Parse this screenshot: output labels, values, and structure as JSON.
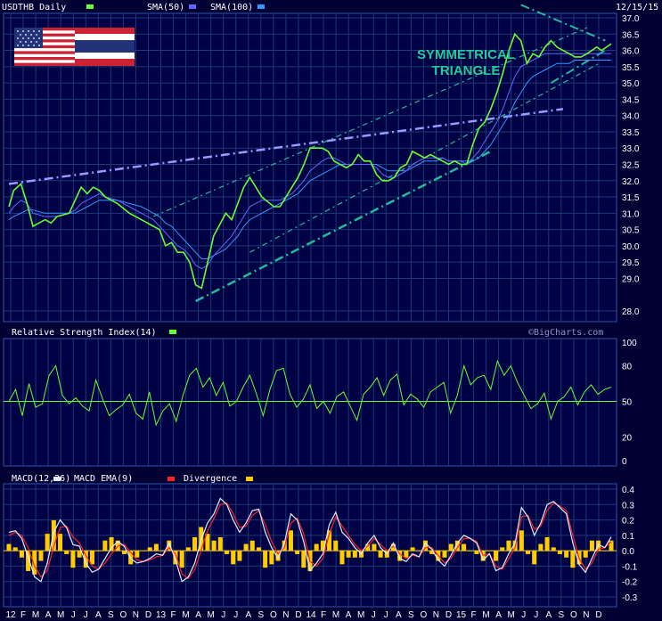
{
  "header": {
    "symbol_label": "USDTHB Daily",
    "sma50_label": "SMA(50)",
    "sma100_label": "SMA(100)",
    "date_label": "12/15/15",
    "annotation_line1": "SYMMETRICAL",
    "annotation_line2": "TRIANGLE",
    "watermark": "©BigCharts.com"
  },
  "colors": {
    "background": "#000033",
    "price": "#66ff33",
    "sma50": "#6666ff",
    "sma100": "#3399ff",
    "grid": "#1a3a7a",
    "channel": "#22bb99",
    "resistance": "#9999ff",
    "rsi": "#66ff33",
    "macd": "#ddeeff",
    "macd_ema": "#ff2222",
    "divergence": "#ffcc00"
  },
  "flag_icons": [
    "us-flag-icon",
    "thailand-flag-icon"
  ],
  "chart_data": [
    {
      "type": "line",
      "title": "USDTHB Daily",
      "series_names": [
        "USDTHB",
        "SMA(50)",
        "SMA(100)"
      ],
      "ylim": [
        28.0,
        37.0
      ],
      "yticks": [
        "28.0",
        "29.0",
        "29.5",
        "30.0",
        "30.5",
        "31.0",
        "31.5",
        "32.0",
        "32.5",
        "33.0",
        "33.5",
        "34.0",
        "34.5",
        "35.0",
        "35.5",
        "36.0",
        "36.5",
        "37.0"
      ],
      "x": [
        0,
        0.4,
        1,
        1.5,
        2,
        3,
        3.5,
        4,
        5,
        5.5,
        6,
        6.5,
        7,
        7.5,
        8,
        9,
        10,
        11,
        12,
        12.5,
        13,
        13.5,
        14,
        14.5,
        15,
        15.5,
        16,
        16.5,
        17,
        18,
        18.5,
        19,
        19.5,
        20,
        21,
        22,
        22.5,
        23,
        23.5,
        24,
        24.5,
        25,
        26,
        26.5,
        27,
        27.5,
        28,
        28.5,
        29,
        29.5,
        30,
        30.5,
        31,
        31.5,
        32,
        32.5,
        33,
        33.5,
        34,
        34.5,
        35,
        35.5,
        36,
        36.5,
        37,
        37.5,
        38,
        38.5,
        39,
        39.5,
        40,
        40.5,
        41,
        41.5,
        42,
        42.5,
        43,
        43.5,
        44,
        44.5,
        45,
        45.5,
        46,
        46.5,
        47,
        47.5,
        48,
        48.4,
        48.8,
        49.2,
        49.6,
        50
      ],
      "price": [
        31.2,
        31.7,
        31.9,
        31.3,
        30.6,
        30.8,
        30.7,
        30.9,
        31.0,
        31.4,
        31.8,
        31.6,
        31.8,
        31.7,
        31.5,
        31.3,
        31.0,
        30.8,
        30.6,
        30.5,
        30.0,
        30.1,
        29.8,
        29.8,
        29.5,
        28.8,
        28.7,
        29.5,
        30.3,
        31.0,
        30.8,
        31.3,
        31.8,
        32.1,
        31.5,
        31.2,
        31.2,
        31.5,
        31.8,
        32.1,
        32.5,
        33.0,
        33.0,
        32.9,
        32.6,
        32.5,
        32.4,
        32.5,
        32.8,
        32.6,
        32.6,
        32.2,
        32.0,
        32.0,
        32.1,
        32.4,
        32.5,
        32.9,
        32.8,
        32.7,
        32.8,
        32.7,
        32.6,
        32.5,
        32.6,
        32.5,
        32.5,
        33.1,
        33.6,
        33.8,
        34.2,
        34.7,
        35.3,
        36.0,
        36.5,
        36.3,
        35.6,
        35.9,
        35.8,
        36.1,
        36.3,
        36.1,
        36.0,
        35.9,
        35.8,
        35.8,
        35.9,
        36.0,
        36.1,
        36.0,
        36.1,
        36.2
      ],
      "sma50": [
        31.0,
        31.2,
        31.4,
        31.3,
        31.0,
        30.9,
        30.9,
        30.9,
        31.0,
        31.1,
        31.3,
        31.4,
        31.5,
        31.6,
        31.5,
        31.4,
        31.2,
        31.0,
        30.8,
        30.6,
        30.4,
        30.2,
        30.0,
        29.9,
        29.7,
        29.4,
        29.3,
        29.4,
        29.7,
        30.1,
        30.3,
        30.6,
        30.9,
        31.2,
        31.4,
        31.4,
        31.4,
        31.5,
        31.6,
        31.8,
        32.0,
        32.3,
        32.6,
        32.7,
        32.7,
        32.6,
        32.5,
        32.5,
        32.5,
        32.5,
        32.5,
        32.4,
        32.2,
        32.1,
        32.1,
        32.2,
        32.3,
        32.5,
        32.6,
        32.7,
        32.7,
        32.7,
        32.7,
        32.6,
        32.6,
        32.6,
        32.5,
        32.7,
        32.9,
        33.2,
        33.5,
        33.8,
        34.2,
        34.7,
        35.2,
        35.5,
        35.6,
        35.7,
        35.8,
        35.9,
        35.9,
        35.9,
        35.9,
        35.9,
        35.9,
        35.9,
        35.9,
        35.9,
        35.9,
        35.9,
        35.9,
        35.9
      ],
      "sma100": [
        30.8,
        30.9,
        31.0,
        31.1,
        31.1,
        31.0,
        31.0,
        31.0,
        31.0,
        31.0,
        31.1,
        31.2,
        31.3,
        31.4,
        31.4,
        31.4,
        31.3,
        31.2,
        31.0,
        30.9,
        30.7,
        30.6,
        30.4,
        30.2,
        30.0,
        29.8,
        29.6,
        29.6,
        29.7,
        29.9,
        30.1,
        30.3,
        30.6,
        30.8,
        31.0,
        31.2,
        31.3,
        31.4,
        31.5,
        31.6,
        31.8,
        32.0,
        32.2,
        32.3,
        32.4,
        32.5,
        32.5,
        32.5,
        32.5,
        32.5,
        32.5,
        32.5,
        32.4,
        32.3,
        32.3,
        32.3,
        32.3,
        32.4,
        32.5,
        32.6,
        32.6,
        32.6,
        32.7,
        32.6,
        32.6,
        32.6,
        32.6,
        32.6,
        32.7,
        32.9,
        33.1,
        33.4,
        33.7,
        34.0,
        34.4,
        34.7,
        35.0,
        35.2,
        35.3,
        35.4,
        35.5,
        35.6,
        35.6,
        35.6,
        35.7,
        35.7,
        35.7,
        35.7,
        35.7,
        35.7,
        35.7,
        35.7
      ]
    },
    {
      "type": "line",
      "title": "Relative Strength Index(14)",
      "ylim": [
        0,
        100
      ],
      "yticks": [
        "0",
        "20",
        "50",
        "80",
        "100"
      ],
      "reference_line": 50,
      "values": [
        50,
        60,
        38,
        65,
        45,
        48,
        72,
        80,
        55,
        48,
        53,
        46,
        42,
        68,
        52,
        38,
        43,
        47,
        56,
        40,
        35,
        58,
        30,
        42,
        48,
        33,
        55,
        72,
        78,
        62,
        70,
        55,
        66,
        46,
        50,
        62,
        72,
        56,
        38,
        60,
        76,
        78,
        56,
        45,
        52,
        64,
        44,
        50,
        40,
        54,
        58,
        46,
        34,
        56,
        62,
        70,
        55,
        68,
        73,
        47,
        56,
        52,
        45,
        58,
        62,
        66,
        40,
        55,
        80,
        64,
        70,
        72,
        60,
        84,
        72,
        80,
        66,
        55,
        44,
        48,
        57,
        35,
        50,
        54,
        62,
        47,
        58,
        64,
        56,
        60,
        62
      ]
    },
    {
      "type": "line",
      "title": "MACD(12,26)",
      "series_names": [
        "MACD(12,26)",
        "MACD EMA(9)",
        "Divergence"
      ],
      "ylim": [
        -0.3,
        0.4
      ],
      "yticks": [
        "-0.3",
        "-0.2",
        "-0.1",
        "0.0",
        "0.1",
        "0.2",
        "0.3",
        "0.4"
      ],
      "macd": [
        0.12,
        0.13,
        0.08,
        -0.04,
        -0.17,
        -0.2,
        -0.08,
        0.12,
        0.2,
        0.15,
        0.04,
        0.03,
        -0.08,
        -0.14,
        -0.12,
        -0.05,
        0.02,
        0.06,
        0.03,
        -0.05,
        -0.08,
        -0.07,
        -0.05,
        -0.02,
        -0.03,
        0.05,
        -0.06,
        -0.2,
        -0.17,
        -0.08,
        0.07,
        0.18,
        0.24,
        0.34,
        0.3,
        0.2,
        0.12,
        0.18,
        0.26,
        0.27,
        0.12,
        0.02,
        -0.05,
        0.05,
        0.24,
        0.2,
        0.06,
        -0.13,
        -0.08,
        -0.02,
        0.17,
        0.25,
        0.12,
        0.08,
        0.02,
        -0.02,
        0.05,
        0.1,
        0.02,
        -0.02,
        0.05,
        -0.05,
        -0.07,
        -0.02,
        -0.04,
        0.05,
        0.01,
        -0.06,
        -0.1,
        -0.03,
        0.05,
        0.1,
        0.08,
        0.05,
        -0.06,
        -0.02,
        -0.13,
        -0.11,
        -0.02,
        0.05,
        0.28,
        0.22,
        0.1,
        0.18,
        0.3,
        0.32,
        0.28,
        0.24,
        0.05,
        -0.09,
        -0.14,
        -0.05,
        0.04,
        0.02,
        0.09
      ],
      "signal": [
        0.1,
        0.12,
        0.1,
        0.02,
        -0.1,
        -0.17,
        -0.13,
        0.03,
        0.15,
        0.16,
        0.09,
        0.05,
        -0.03,
        -0.1,
        -0.12,
        -0.08,
        -0.02,
        0.03,
        0.04,
        -0.01,
        -0.06,
        -0.07,
        -0.06,
        -0.04,
        -0.03,
        0.02,
        -0.02,
        -0.15,
        -0.18,
        -0.12,
        0.0,
        0.13,
        0.21,
        0.3,
        0.31,
        0.24,
        0.15,
        0.16,
        0.23,
        0.26,
        0.17,
        0.06,
        -0.02,
        0.02,
        0.18,
        0.21,
        0.11,
        -0.07,
        -0.1,
        -0.05,
        0.11,
        0.22,
        0.16,
        0.1,
        0.04,
        0.0,
        0.03,
        0.08,
        0.04,
        0.0,
        0.03,
        -0.02,
        -0.05,
        -0.03,
        -0.04,
        0.02,
        0.02,
        -0.03,
        -0.08,
        -0.05,
        0.02,
        0.08,
        0.08,
        0.06,
        -0.03,
        -0.02,
        -0.1,
        -0.12,
        -0.05,
        0.02,
        0.22,
        0.23,
        0.14,
        0.16,
        0.26,
        0.31,
        0.29,
        0.26,
        0.1,
        -0.05,
        -0.12,
        -0.08,
        0.01,
        0.02,
        0.06
      ]
    }
  ],
  "x_axis_labels": [
    "12",
    "F",
    "M",
    "A",
    "M",
    "J",
    "J",
    "A",
    "S",
    "O",
    "N",
    "D",
    "13",
    "F",
    "M",
    "A",
    "M",
    "J",
    "J",
    "A",
    "S",
    "O",
    "N",
    "D",
    "14",
    "F",
    "M",
    "A",
    "M",
    "J",
    "J",
    "A",
    "S",
    "O",
    "N",
    "D",
    "15",
    "F",
    "M",
    "A",
    "M",
    "J",
    "J",
    "A",
    "S",
    "O",
    "N",
    "D"
  ]
}
